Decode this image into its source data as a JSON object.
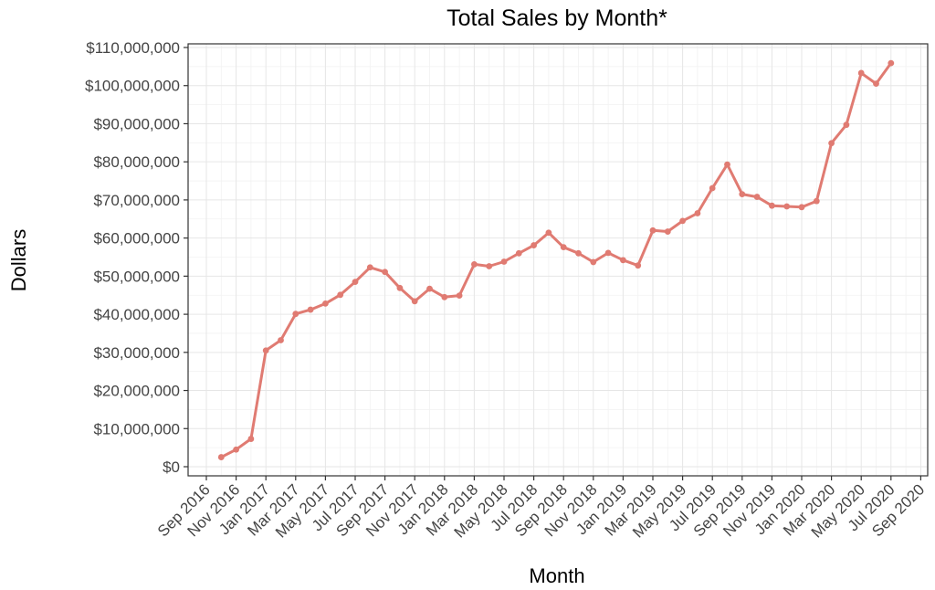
{
  "chart_data": {
    "type": "line",
    "title": "Total Sales by Month*",
    "xlabel": "Month",
    "ylabel": "Dollars",
    "x_start": "2016-10",
    "x_ticks": [
      "Sep 2016",
      "Nov 2016",
      "Jan 2017",
      "Mar 2017",
      "May 2017",
      "Jul 2017",
      "Sep 2017",
      "Nov 2017",
      "Jan 2018",
      "Mar 2018",
      "May 2018",
      "Jul 2018",
      "Sep 2018",
      "Nov 2018",
      "Jan 2019",
      "Mar 2019",
      "May 2019",
      "Jul 2019",
      "Sep 2019",
      "Nov 2019",
      "Jan 2020",
      "Mar 2020",
      "May 2020",
      "Jul 2020",
      "Sep 2020"
    ],
    "y_ticks": [
      "$0",
      "$10,000,000",
      "$20,000,000",
      "$30,000,000",
      "$40,000,000",
      "$50,000,000",
      "$60,000,000",
      "$70,000,000",
      "$80,000,000",
      "$90,000,000",
      "$100,000,000",
      "$110,000,000"
    ],
    "ylim": [
      0,
      110000000
    ],
    "grid": true,
    "color": "#e07b72",
    "series": [
      {
        "x": [
          "2016-10",
          "2016-11",
          "2016-12",
          "2017-01",
          "2017-02",
          "2017-03",
          "2017-04",
          "2017-05",
          "2017-06",
          "2017-07",
          "2017-08",
          "2017-09",
          "2017-10",
          "2017-11",
          "2017-12",
          "2018-01",
          "2018-02",
          "2018-03",
          "2018-04",
          "2018-05",
          "2018-06",
          "2018-07",
          "2018-08",
          "2018-09",
          "2018-10",
          "2018-11",
          "2018-12",
          "2019-01",
          "2019-02",
          "2019-03",
          "2019-04",
          "2019-05",
          "2019-06",
          "2019-07",
          "2019-08",
          "2019-09",
          "2019-10",
          "2019-11",
          "2019-12",
          "2020-01",
          "2020-02",
          "2020-03",
          "2020-04",
          "2020-05",
          "2020-06",
          "2020-07",
          "2020-08"
        ],
        "values": [
          2500000,
          4500000,
          7300000,
          30500000,
          33200000,
          40100000,
          41200000,
          42800000,
          45100000,
          48500000,
          52300000,
          51100000,
          46900000,
          43400000,
          46700000,
          44500000,
          44900000,
          53100000,
          52600000,
          53800000,
          56000000,
          58100000,
          61400000,
          57600000,
          56000000,
          53700000,
          56100000,
          54200000,
          52800000,
          62000000,
          61700000,
          64500000,
          66500000,
          73100000,
          79300000,
          71500000,
          70800000,
          68500000,
          68300000,
          68100000,
          69700000,
          84900000,
          89700000,
          103300000,
          100500000,
          105900000,
          null
        ]
      }
    ]
  }
}
